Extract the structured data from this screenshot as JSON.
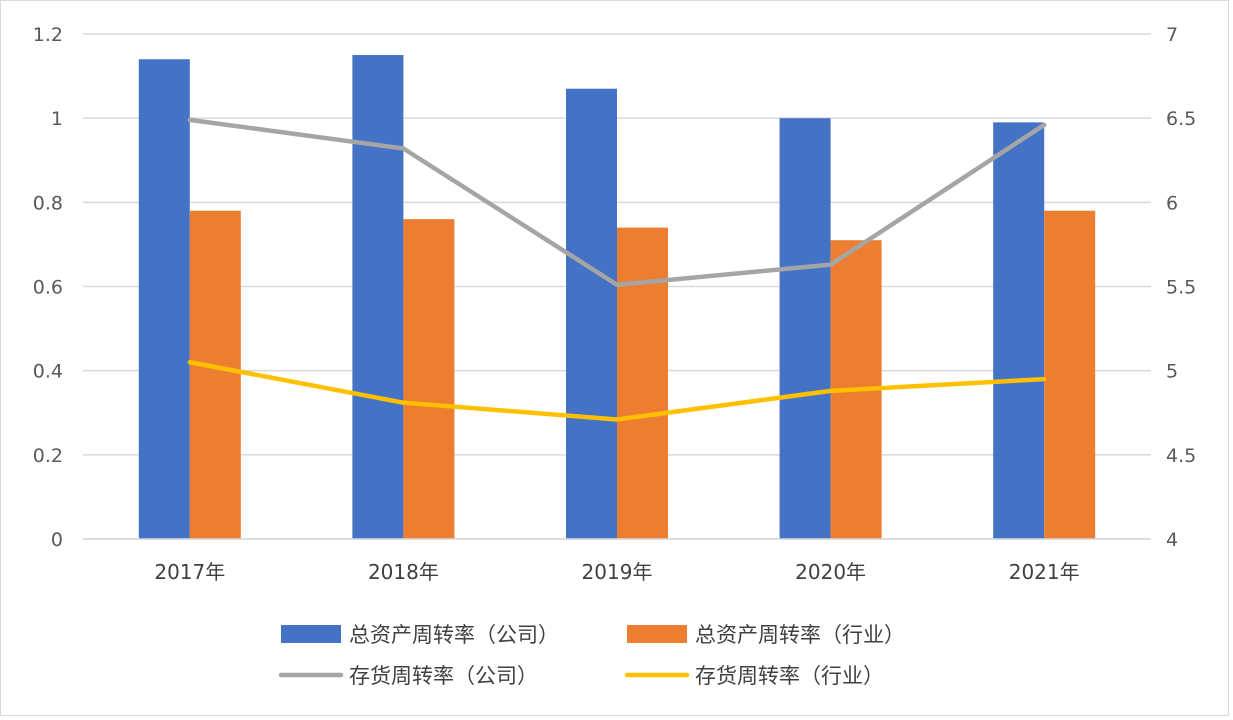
{
  "chart_data": {
    "type": "bar",
    "categories": [
      "2017年",
      "2018年",
      "2019年",
      "2020年",
      "2021年"
    ],
    "title": "",
    "xlabel": "",
    "ylabel": "",
    "y_left": {
      "ylim": [
        0,
        1.2
      ],
      "ticks": [
        "0",
        "0.2",
        "0.4",
        "0.6",
        "0.8",
        "1",
        "1.2"
      ]
    },
    "y_right": {
      "ylim": [
        4,
        7
      ],
      "ticks": [
        "4",
        "4.5",
        "5",
        "5.5",
        "6",
        "6.5",
        "7"
      ]
    },
    "grid": true,
    "legend_position": "bottom",
    "series": [
      {
        "name": "总资产周转率（公司）",
        "kind": "bar",
        "axis": "left",
        "color": "#4472c4",
        "values": [
          1.14,
          1.15,
          1.07,
          1.0,
          0.99
        ]
      },
      {
        "name": "总资产周转率（行业）",
        "kind": "bar",
        "axis": "left",
        "color": "#ed7d31",
        "values": [
          0.78,
          0.76,
          0.74,
          0.71,
          0.78
        ]
      },
      {
        "name": "存货周转率（公司）",
        "kind": "line",
        "axis": "right",
        "color": "#a5a5a5",
        "values": [
          6.49,
          6.32,
          5.51,
          5.63,
          6.46
        ]
      },
      {
        "name": "存货周转率（行业）",
        "kind": "line",
        "axis": "right",
        "color": "#ffc000",
        "values": [
          5.05,
          4.81,
          4.71,
          4.88,
          4.95
        ]
      }
    ]
  }
}
